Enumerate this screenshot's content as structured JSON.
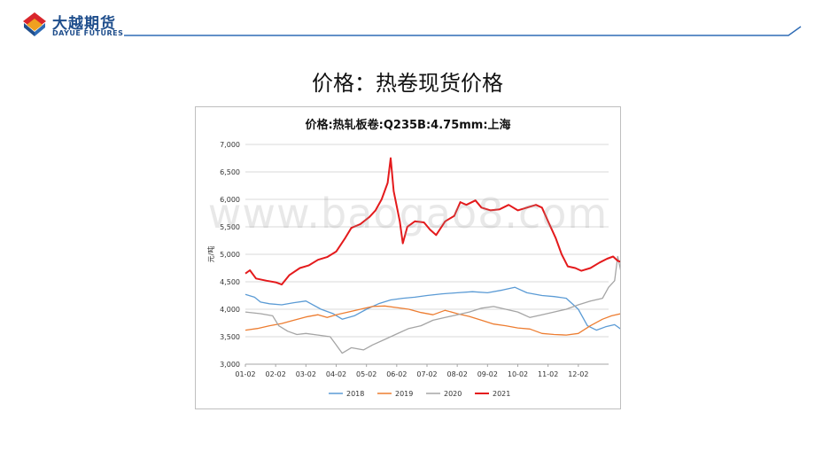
{
  "brand": {
    "name_cn": "大越期货",
    "name_en": "DAYUE FUTURES"
  },
  "slide": {
    "title": "价格：热卷现货价格"
  },
  "watermark": "www.baogao8.com",
  "colors": {
    "header_line": "#2e6bb5",
    "brand": "#1f4e8c",
    "logo_red": "#d9262c",
    "logo_orange": "#f0a020"
  },
  "chart_data": {
    "type": "line",
    "title": "价格:热轧板卷:Q235B:4.75mm:上海",
    "ylabel": "元/吨",
    "xlabel": "",
    "ylim": [
      3000,
      7000
    ],
    "yticks": [
      "3,000",
      "3,500",
      "4,000",
      "4,500",
      "5,000",
      "5,500",
      "6,000",
      "6,500",
      "7,000"
    ],
    "xticks": [
      "01-02",
      "02-02",
      "03-02",
      "04-02",
      "05-02",
      "06-02",
      "07-02",
      "08-02",
      "09-02",
      "10-02",
      "11-02",
      "12-02"
    ],
    "grid": true,
    "legend": "bottom",
    "series": [
      {
        "name": "2018",
        "color": "#5b9bd5",
        "points": [
          [
            0,
            4270
          ],
          [
            0.3,
            4220
          ],
          [
            0.5,
            4130
          ],
          [
            0.8,
            4100
          ],
          [
            1.2,
            4080
          ],
          [
            1.6,
            4120
          ],
          [
            2.0,
            4150
          ],
          [
            2.5,
            4000
          ],
          [
            2.9,
            3920
          ],
          [
            3.2,
            3820
          ],
          [
            3.6,
            3880
          ],
          [
            4.0,
            4000
          ],
          [
            4.4,
            4100
          ],
          [
            4.8,
            4170
          ],
          [
            5.2,
            4200
          ],
          [
            5.6,
            4220
          ],
          [
            6.0,
            4250
          ],
          [
            6.5,
            4280
          ],
          [
            7.0,
            4300
          ],
          [
            7.5,
            4320
          ],
          [
            8.0,
            4300
          ],
          [
            8.5,
            4350
          ],
          [
            8.9,
            4400
          ],
          [
            9.3,
            4300
          ],
          [
            9.8,
            4250
          ],
          [
            10.2,
            4230
          ],
          [
            10.6,
            4200
          ],
          [
            11.0,
            4000
          ],
          [
            11.3,
            3700
          ],
          [
            11.6,
            3620
          ],
          [
            11.9,
            3680
          ],
          [
            12.2,
            3720
          ],
          [
            12.4,
            3640
          ]
        ]
      },
      {
        "name": "2019",
        "color": "#ed7d31",
        "points": [
          [
            0,
            3620
          ],
          [
            0.4,
            3650
          ],
          [
            0.8,
            3700
          ],
          [
            1.2,
            3740
          ],
          [
            1.6,
            3800
          ],
          [
            2.0,
            3860
          ],
          [
            2.4,
            3900
          ],
          [
            2.7,
            3850
          ],
          [
            3.0,
            3900
          ],
          [
            3.4,
            3950
          ],
          [
            3.8,
            4000
          ],
          [
            4.2,
            4050
          ],
          [
            4.6,
            4060
          ],
          [
            5.0,
            4030
          ],
          [
            5.4,
            4000
          ],
          [
            5.8,
            3940
          ],
          [
            6.2,
            3900
          ],
          [
            6.6,
            3980
          ],
          [
            7.0,
            3920
          ],
          [
            7.4,
            3870
          ],
          [
            7.8,
            3800
          ],
          [
            8.2,
            3730
          ],
          [
            8.6,
            3700
          ],
          [
            9.0,
            3660
          ],
          [
            9.4,
            3640
          ],
          [
            9.8,
            3560
          ],
          [
            10.2,
            3540
          ],
          [
            10.6,
            3530
          ],
          [
            11.0,
            3560
          ],
          [
            11.4,
            3700
          ],
          [
            11.8,
            3820
          ],
          [
            12.1,
            3880
          ],
          [
            12.4,
            3920
          ]
        ]
      },
      {
        "name": "2020",
        "color": "#a5a5a5",
        "points": [
          [
            0,
            3950
          ],
          [
            0.5,
            3920
          ],
          [
            0.9,
            3880
          ],
          [
            1.1,
            3700
          ],
          [
            1.4,
            3600
          ],
          [
            1.7,
            3540
          ],
          [
            2.0,
            3560
          ],
          [
            2.4,
            3530
          ],
          [
            2.8,
            3500
          ],
          [
            3.0,
            3350
          ],
          [
            3.2,
            3200
          ],
          [
            3.5,
            3300
          ],
          [
            3.9,
            3260
          ],
          [
            4.2,
            3350
          ],
          [
            4.6,
            3450
          ],
          [
            5.0,
            3550
          ],
          [
            5.4,
            3650
          ],
          [
            5.8,
            3700
          ],
          [
            6.2,
            3800
          ],
          [
            6.6,
            3850
          ],
          [
            7.0,
            3900
          ],
          [
            7.4,
            3950
          ],
          [
            7.8,
            4020
          ],
          [
            8.2,
            4050
          ],
          [
            8.6,
            4000
          ],
          [
            9.0,
            3950
          ],
          [
            9.4,
            3850
          ],
          [
            9.8,
            3900
          ],
          [
            10.2,
            3950
          ],
          [
            10.6,
            4000
          ],
          [
            11.0,
            4080
          ],
          [
            11.4,
            4150
          ],
          [
            11.8,
            4200
          ],
          [
            12.0,
            4400
          ],
          [
            12.2,
            4520
          ],
          [
            12.3,
            4960
          ],
          [
            12.4,
            4700
          ],
          [
            12.5,
            4560
          ]
        ]
      },
      {
        "name": "2021",
        "color": "#e41a1c",
        "points": [
          [
            0,
            4650
          ],
          [
            0.15,
            4710
          ],
          [
            0.35,
            4560
          ],
          [
            0.7,
            4520
          ],
          [
            1.0,
            4490
          ],
          [
            1.2,
            4450
          ],
          [
            1.45,
            4620
          ],
          [
            1.8,
            4750
          ],
          [
            2.1,
            4800
          ],
          [
            2.4,
            4900
          ],
          [
            2.7,
            4950
          ],
          [
            3.0,
            5050
          ],
          [
            3.3,
            5300
          ],
          [
            3.5,
            5480
          ],
          [
            3.8,
            5550
          ],
          [
            4.1,
            5680
          ],
          [
            4.3,
            5800
          ],
          [
            4.5,
            6000
          ],
          [
            4.7,
            6300
          ],
          [
            4.8,
            6750
          ],
          [
            4.9,
            6150
          ],
          [
            5.1,
            5600
          ],
          [
            5.2,
            5200
          ],
          [
            5.35,
            5500
          ],
          [
            5.6,
            5600
          ],
          [
            5.9,
            5580
          ],
          [
            6.1,
            5450
          ],
          [
            6.3,
            5350
          ],
          [
            6.6,
            5600
          ],
          [
            6.9,
            5700
          ],
          [
            7.1,
            5950
          ],
          [
            7.3,
            5900
          ],
          [
            7.6,
            5980
          ],
          [
            7.8,
            5850
          ],
          [
            8.1,
            5800
          ],
          [
            8.4,
            5820
          ],
          [
            8.7,
            5900
          ],
          [
            9.0,
            5800
          ],
          [
            9.3,
            5850
          ],
          [
            9.6,
            5900
          ],
          [
            9.8,
            5850
          ],
          [
            10.0,
            5600
          ],
          [
            10.25,
            5300
          ],
          [
            10.45,
            5000
          ],
          [
            10.65,
            4780
          ],
          [
            10.9,
            4750
          ],
          [
            11.1,
            4700
          ],
          [
            11.4,
            4750
          ],
          [
            11.7,
            4850
          ],
          [
            11.95,
            4920
          ],
          [
            12.15,
            4960
          ],
          [
            12.3,
            4880
          ],
          [
            12.5,
            4850
          ]
        ]
      }
    ]
  }
}
